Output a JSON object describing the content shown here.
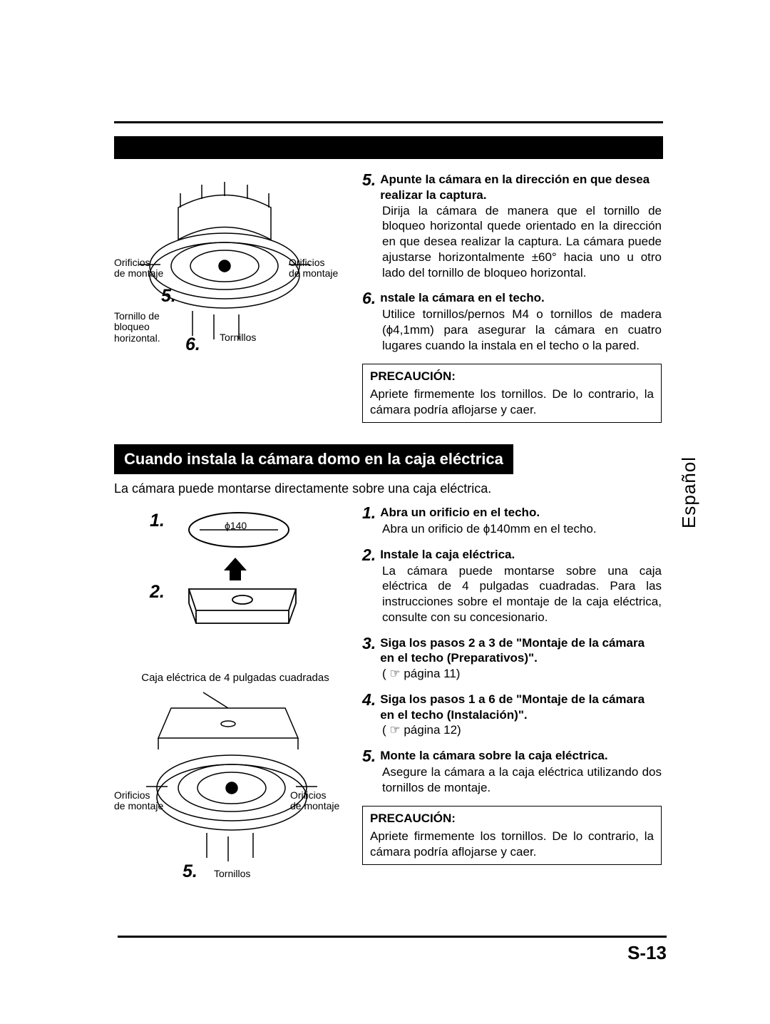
{
  "colors": {
    "text": "#000000",
    "bg": "#ffffff",
    "reverse": "#000000"
  },
  "fonts": {
    "body_pt": 13,
    "heading_pt": 17,
    "stepnum_pt": 18,
    "sidetab_pt": 20,
    "page_pt": 20
  },
  "upper_diagram": {
    "left_label": "Orificios\nde montaje",
    "right_label": "Orificios\nde montaje",
    "lock_screw_label": "Tornillo de\nbloqueo\nhorizontal.",
    "screws_label": "Tornillos",
    "callout_5": "5.",
    "callout_6": "6."
  },
  "step5": {
    "num": "5.",
    "title": "Apunte la cámara en la dirección en que desea realizar la captura.",
    "body": "Dirija la cámara de manera que el tornillo de bloqueo horizontal quede orientado en la dirección en que desea realizar la captura. La cámara puede ajustarse horizontalmente ±60° hacia uno u otro lado del tornillo de bloqueo horizontal."
  },
  "step6": {
    "num": "6.",
    "title": "nstale la cámara en el techo.",
    "body": "Utilice tornillos/pernos M4 o tornillos de madera (ϕ4,1mm) para asegurar la cámara en cuatro lugares cuando la instala en el techo o la pared."
  },
  "precaution1": {
    "title": "PRECAUCIÓN:",
    "body": "Apriete firmemente los tornillos. De lo contrario, la cámara podría aflojarse y caer."
  },
  "section_heading": "Cuando instala la cámara domo en la caja eléctrica",
  "section_intro": "La cámara puede montarse directamente sobre una caja eléctrica.",
  "lower_diagram": {
    "callout_1": "1.",
    "callout_2": "2.",
    "hole_label": "ϕ140",
    "box_caption": "Caja eléctrica de 4 pulgadas cuadradas",
    "left_label": "Orificios\nde montaje",
    "right_label": "Orificios\nde montaje",
    "screws_label": "Tornillos",
    "callout_5": "5."
  },
  "b_step1": {
    "num": "1.",
    "title": "Abra un orificio en el techo.",
    "body": "Abra un orificio de ϕ140mm en el techo."
  },
  "b_step2": {
    "num": "2.",
    "title": "Instale la caja eléctrica.",
    "body": "La cámara puede montarse sobre una caja eléctrica de 4 pulgadas cuadradas. Para las instrucciones sobre el montaje de la caja eléctrica, consulte con su concesionario."
  },
  "b_step3": {
    "num": "3.",
    "title": "Siga los pasos 2 a 3 de \"Montaje de la cámara en el techo (Preparativos)\".",
    "body": "( ☞ página 11)"
  },
  "b_step4": {
    "num": "4.",
    "title": "Siga los pasos 1 a 6 de \"Montaje de la cámara en el techo (Instalación)\".",
    "body": "( ☞ página 12)"
  },
  "b_step5": {
    "num": "5.",
    "title": "Monte la cámara sobre la caja eléctrica.",
    "body": "Asegure la cámara a la caja eléctrica utilizando dos tornillos de montaje."
  },
  "precaution2": {
    "title": "PRECAUCIÓN:",
    "body": "Apriete firmemente los tornillos. De lo contrario, la cámara podría aflojarse y caer."
  },
  "side_tab": "Español",
  "page_number": "S-13"
}
